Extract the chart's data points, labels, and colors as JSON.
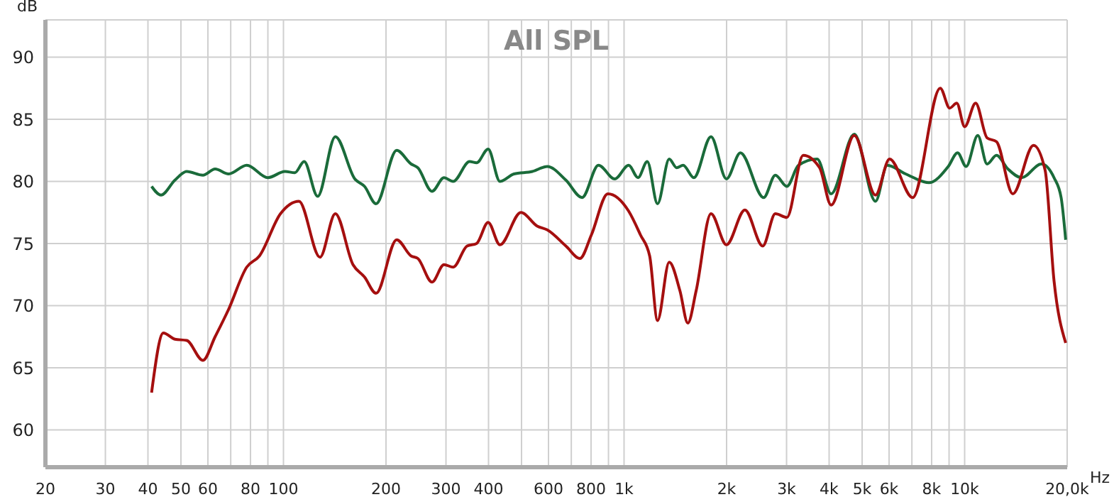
{
  "chart_data": {
    "type": "line",
    "title": "All SPL",
    "ylabel": "dB",
    "xlabel": "Hz",
    "log": "x",
    "grid": true,
    "legend": false,
    "marker": "none",
    "line_style": "solid",
    "xlim": [
      20,
      20000
    ],
    "ylim": [
      57,
      93
    ],
    "xticks": [
      20,
      30,
      40,
      50,
      60,
      {
        "value": 70,
        "label": null
      },
      80,
      {
        "value": 90,
        "label": null
      },
      100,
      200,
      300,
      400,
      {
        "value": 500,
        "label": null
      },
      600,
      {
        "value": 700,
        "label": null
      },
      800,
      {
        "value": 900,
        "label": null
      },
      {
        "value": 1000,
        "label": "1k"
      },
      {
        "value": 2000,
        "label": "2k"
      },
      {
        "value": 3000,
        "label": "3k"
      },
      {
        "value": 4000,
        "label": "4k"
      },
      {
        "value": 5000,
        "label": "5k"
      },
      {
        "value": 6000,
        "label": "6k"
      },
      {
        "value": 7000,
        "label": null
      },
      {
        "value": 8000,
        "label": "8k"
      },
      {
        "value": 9000,
        "label": null
      },
      {
        "value": 10000,
        "label": "10k"
      },
      {
        "value": 20000,
        "label": "20,0k"
      }
    ],
    "yticks": [
      60,
      65,
      70,
      75,
      80,
      85,
      90
    ],
    "series": [
      {
        "color": "#1a6b3a",
        "x": [
          41,
          43.7,
          48,
          52,
          58,
          63,
          69,
          78,
          90,
          101,
          108,
          115,
          126,
          142,
          162,
          173,
          187,
          215,
          237,
          248,
          273,
          296,
          315,
          352,
          369,
          399,
          432,
          475,
          538,
          595,
          675,
          753,
          841,
          939,
          1032,
          1099,
          1170,
          1254,
          1357,
          1427,
          1491,
          1603,
          1800,
          1998,
          2196,
          2570,
          2781,
          3006,
          3253,
          3690,
          4055,
          4742,
          5474,
          5924,
          6713,
          7857,
          8951,
          9535,
          10100,
          10930,
          11640,
          12400,
          13400,
          14700,
          16800,
          18300,
          19200,
          19800
        ],
        "values": [
          79.6,
          78.9,
          80.1,
          80.8,
          80.5,
          81.0,
          80.6,
          81.3,
          80.3,
          80.8,
          80.7,
          81.6,
          78.8,
          83.6,
          80.2,
          79.6,
          78.2,
          82.5,
          81.4,
          81.1,
          79.2,
          80.3,
          80.0,
          81.6,
          81.5,
          82.6,
          80.0,
          80.6,
          80.8,
          81.2,
          80.1,
          78.7,
          81.3,
          80.2,
          81.3,
          80.3,
          81.6,
          78.2,
          81.8,
          81.1,
          81.3,
          80.3,
          83.6,
          80.2,
          82.3,
          78.7,
          80.5,
          79.6,
          81.3,
          81.8,
          79.0,
          83.8,
          78.4,
          81.3,
          80.6,
          79.9,
          81.2,
          82.3,
          81.2,
          83.7,
          81.4,
          82.1,
          81.0,
          80.3,
          81.4,
          80.3,
          78.7,
          75.3
        ]
      },
      {
        "color": "#a50f0f",
        "x": [
          41,
          44.4,
          48,
          52,
          58,
          63,
          69,
          78,
          85,
          98,
          111,
          128,
          142,
          160,
          173,
          187,
          215,
          237,
          248,
          273,
          296,
          315,
          346,
          369,
          399,
          432,
          498,
          556,
          595,
          675,
          742,
          802,
          896,
          1032,
          1117,
          1189,
          1254,
          1357,
          1459,
          1539,
          1628,
          1800,
          1998,
          2264,
          2554,
          2781,
          3006,
          3358,
          3751,
          4055,
          4742,
          5474,
          6020,
          7037,
          8480,
          9040,
          9480,
          10000,
          10770,
          11640,
          12400,
          13850,
          15930,
          17230,
          18300,
          19800
        ],
        "values": [
          63.0,
          67.8,
          67.3,
          67.2,
          65.6,
          67.5,
          69.7,
          73.1,
          74.0,
          77.4,
          78.4,
          73.9,
          77.4,
          73.3,
          72.3,
          71.0,
          75.3,
          74.0,
          73.8,
          71.9,
          73.3,
          73.1,
          74.8,
          75.0,
          76.7,
          74.9,
          77.5,
          76.4,
          76.1,
          74.8,
          73.8,
          75.7,
          79.0,
          77.6,
          75.7,
          74.0,
          68.8,
          73.5,
          71.2,
          68.6,
          71.2,
          77.4,
          74.9,
          77.7,
          74.8,
          77.4,
          77.1,
          82.1,
          81.1,
          78.1,
          83.7,
          78.9,
          81.8,
          78.7,
          87.5,
          85.9,
          86.3,
          84.4,
          86.3,
          83.5,
          83.2,
          79.0,
          82.9,
          80.9,
          72.0,
          67.0
        ]
      }
    ]
  }
}
